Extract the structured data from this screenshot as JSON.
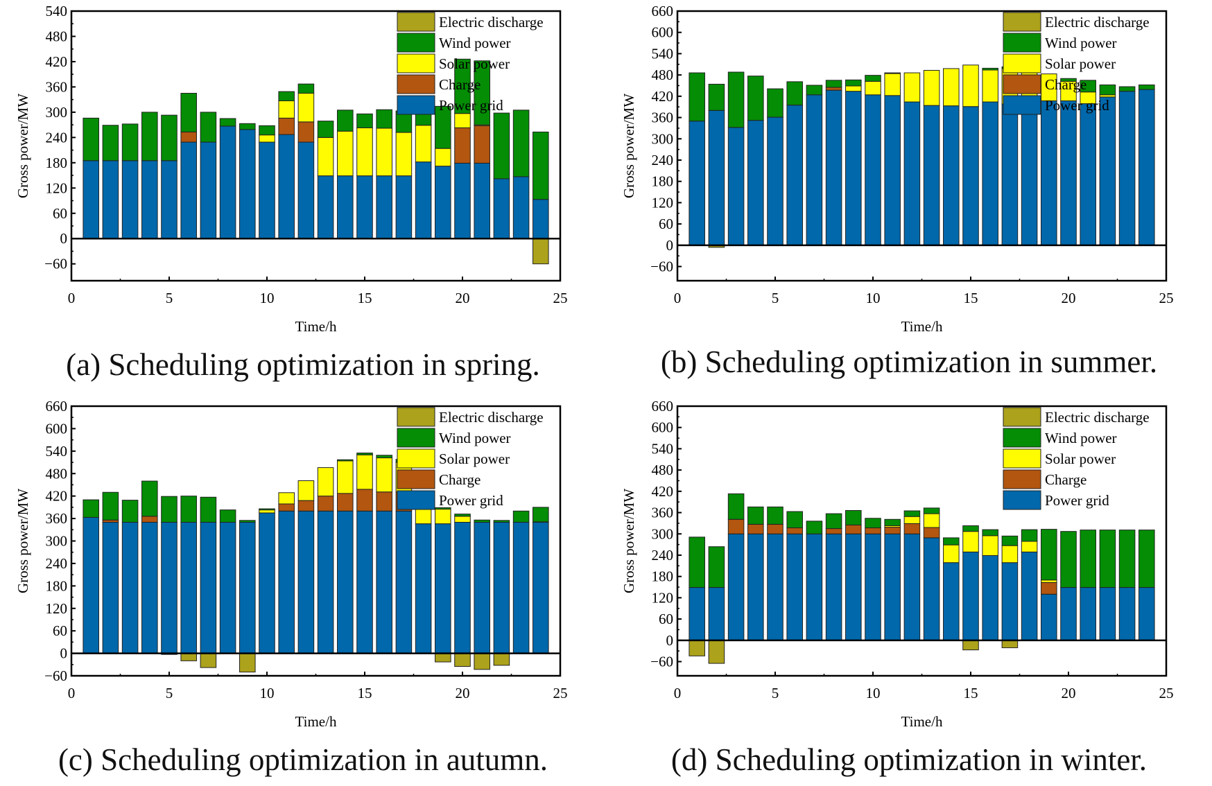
{
  "colors": {
    "Electric discharge": "#aca21b",
    "Wind power": "#048d05",
    "Solar power": "#fffb00",
    "Charge": "#b25610",
    "Power grid": "#0068ab"
  },
  "chart_data": [
    {
      "type": "bar",
      "stacked": true,
      "caption": "(a) Scheduling optimization in spring.",
      "xlabel": "Time/h",
      "ylabel": "Gross power/MW",
      "xlim": [
        0,
        25
      ],
      "ylim": [
        -100,
        540
      ],
      "xticks": [
        0,
        5,
        10,
        15,
        20,
        25
      ],
      "yticks": [
        -60,
        0,
        60,
        120,
        180,
        240,
        300,
        360,
        420,
        480,
        540
      ],
      "legend": "top-right",
      "x": [
        1,
        2,
        3,
        4,
        5,
        6,
        7,
        8,
        9,
        10,
        11,
        12,
        13,
        14,
        15,
        16,
        17,
        18,
        19,
        20,
        21,
        22,
        23,
        24
      ],
      "series": [
        {
          "name": "Power grid",
          "values": [
            185,
            185,
            185,
            185,
            185,
            229,
            229,
            267,
            259,
            229,
            247,
            229,
            149,
            149,
            149,
            149,
            149,
            182,
            172,
            179,
            179,
            142,
            147,
            93
          ]
        },
        {
          "name": "Charge",
          "values": [
            0,
            0,
            0,
            0,
            0,
            24,
            0,
            0,
            0,
            0,
            39,
            48,
            0,
            0,
            0,
            0,
            0,
            0,
            0,
            84,
            89,
            0,
            0,
            0
          ]
        },
        {
          "name": "Solar power",
          "values": [
            0,
            0,
            0,
            0,
            0,
            0,
            0,
            0,
            0,
            17,
            41,
            68,
            91,
            106,
            114,
            113,
            103,
            87,
            42,
            34,
            2,
            0,
            0,
            0
          ]
        },
        {
          "name": "Wind power",
          "values": [
            101,
            84,
            87,
            115,
            108,
            92,
            71,
            18,
            14,
            22,
            22,
            22,
            39,
            50,
            33,
            44,
            51,
            31,
            100,
            129,
            152,
            156,
            158,
            160
          ]
        },
        {
          "name": "Electric discharge",
          "values": [
            0,
            0,
            0,
            0,
            0,
            0,
            0,
            0,
            0,
            0,
            0,
            0,
            0,
            0,
            0,
            0,
            0,
            0,
            0,
            0,
            0,
            0,
            0,
            -60
          ]
        }
      ]
    },
    {
      "type": "bar",
      "stacked": true,
      "caption": "(b) Scheduling optimization in summer.",
      "xlabel": "Time/h",
      "ylabel": "Gross power/MW",
      "xlim": [
        0,
        25
      ],
      "ylim": [
        -100,
        660
      ],
      "xticks": [
        0,
        5,
        10,
        15,
        20,
        25
      ],
      "yticks": [
        -60,
        0,
        60,
        120,
        180,
        240,
        300,
        360,
        420,
        480,
        540,
        600,
        660
      ],
      "legend": "top-right",
      "x": [
        1,
        2,
        3,
        4,
        5,
        6,
        7,
        8,
        9,
        10,
        11,
        12,
        13,
        14,
        15,
        16,
        17,
        18,
        19,
        20,
        21,
        22,
        23,
        24
      ],
      "series": [
        {
          "name": "Power grid",
          "values": [
            350,
            380,
            332,
            352,
            361,
            395,
            424,
            437,
            434,
            424,
            422,
            404,
            394,
            393,
            391,
            404,
            398,
            400,
            407,
            407,
            399,
            418,
            434,
            439
          ]
        },
        {
          "name": "Charge",
          "values": [
            0,
            0,
            0,
            0,
            0,
            0,
            0,
            8,
            0,
            0,
            0,
            0,
            0,
            0,
            0,
            0,
            0,
            0,
            0,
            0,
            0,
            0,
            0,
            0
          ]
        },
        {
          "name": "Solar power",
          "values": [
            0,
            0,
            0,
            0,
            0,
            0,
            0,
            0,
            15,
            38,
            62,
            82,
            99,
            105,
            117,
            90,
            100,
            88,
            76,
            55,
            33,
            6,
            0,
            0
          ]
        },
        {
          "name": "Wind power",
          "values": [
            136,
            74,
            156,
            125,
            80,
            66,
            27,
            20,
            17,
            17,
            2,
            0,
            0,
            0,
            0,
            5,
            5,
            0,
            0,
            8,
            33,
            28,
            13,
            13
          ]
        },
        {
          "name": "Electric discharge",
          "values": [
            0,
            -6,
            0,
            0,
            0,
            0,
            0,
            0,
            0,
            0,
            0,
            0,
            0,
            0,
            0,
            0,
            0,
            0,
            0,
            0,
            0,
            0,
            0,
            0
          ]
        }
      ]
    },
    {
      "type": "bar",
      "stacked": true,
      "caption": "(c) Scheduling optimization in autumn.",
      "xlabel": "Time/h",
      "ylabel": "Gross power/MW",
      "xlim": [
        0,
        25
      ],
      "ylim": [
        -60,
        660
      ],
      "xticks": [
        0,
        5,
        10,
        15,
        20,
        25
      ],
      "yticks": [
        -60,
        0,
        60,
        120,
        180,
        240,
        300,
        360,
        420,
        480,
        540,
        600,
        660
      ],
      "legend": "top-right",
      "x": [
        1,
        2,
        3,
        4,
        5,
        6,
        7,
        8,
        9,
        10,
        11,
        12,
        13,
        14,
        15,
        16,
        17,
        18,
        19,
        20,
        21,
        22,
        23,
        24
      ],
      "series": [
        {
          "name": "Power grid",
          "values": [
            363,
            350,
            350,
            350,
            350,
            350,
            350,
            350,
            350,
            375,
            380,
            380,
            380,
            380,
            380,
            380,
            380,
            346,
            346,
            350,
            350,
            350,
            350,
            350
          ]
        },
        {
          "name": "Charge",
          "values": [
            0,
            6,
            0,
            16,
            0,
            0,
            0,
            0,
            0,
            0,
            19,
            28,
            40,
            47,
            58,
            51,
            51,
            0,
            0,
            0,
            0,
            0,
            0,
            1
          ]
        },
        {
          "name": "Solar power",
          "values": [
            0,
            0,
            0,
            0,
            0,
            0,
            0,
            0,
            0,
            8,
            30,
            53,
            76,
            87,
            92,
            91,
            79,
            40,
            39,
            16,
            0,
            0,
            0,
            0
          ]
        },
        {
          "name": "Wind power",
          "values": [
            47,
            74,
            59,
            94,
            69,
            70,
            67,
            33,
            5,
            3,
            0,
            0,
            0,
            3,
            5,
            7,
            8,
            0,
            4,
            6,
            6,
            5,
            30,
            39
          ]
        },
        {
          "name": "Electric discharge",
          "values": [
            0,
            0,
            0,
            0,
            -3,
            -20,
            -38,
            0,
            -50,
            0,
            0,
            0,
            0,
            0,
            0,
            0,
            0,
            0,
            -23,
            -35,
            -43,
            -32,
            0,
            0
          ]
        }
      ]
    },
    {
      "type": "bar",
      "stacked": true,
      "caption": "(d) Scheduling optimization in winter.",
      "xlabel": "Time/h",
      "ylabel": "Gross power/MW",
      "xlim": [
        0,
        25
      ],
      "ylim": [
        -100,
        660
      ],
      "xticks": [
        0,
        5,
        10,
        15,
        20,
        25
      ],
      "yticks": [
        -60,
        0,
        60,
        120,
        180,
        240,
        300,
        360,
        420,
        480,
        540,
        600,
        660
      ],
      "legend": "top-right",
      "x": [
        1,
        2,
        3,
        4,
        5,
        6,
        7,
        8,
        9,
        10,
        11,
        12,
        13,
        14,
        15,
        16,
        17,
        18,
        19,
        20,
        21,
        22,
        23,
        24
      ],
      "series": [
        {
          "name": "Power grid",
          "values": [
            149,
            149,
            300,
            300,
            300,
            300,
            300,
            300,
            300,
            300,
            300,
            300,
            289,
            219,
            249,
            239,
            219,
            249,
            130,
            149,
            149,
            149,
            149,
            149
          ]
        },
        {
          "name": "Charge",
          "values": [
            0,
            0,
            41,
            27,
            27,
            17,
            0,
            15,
            25,
            17,
            19,
            29,
            29,
            0,
            0,
            0,
            0,
            0,
            33,
            0,
            0,
            0,
            0,
            0
          ]
        },
        {
          "name": "Solar power",
          "values": [
            0,
            0,
            0,
            0,
            0,
            0,
            0,
            0,
            0,
            0,
            4,
            20,
            39,
            50,
            58,
            56,
            48,
            30,
            7,
            0,
            0,
            0,
            0,
            0
          ]
        },
        {
          "name": "Wind power",
          "values": [
            142,
            115,
            72,
            49,
            49,
            46,
            36,
            42,
            41,
            27,
            18,
            16,
            16,
            20,
            16,
            17,
            27,
            33,
            143,
            158,
            162,
            162,
            162,
            162
          ]
        },
        {
          "name": "Electric discharge",
          "values": [
            -44,
            -65,
            0,
            0,
            0,
            0,
            0,
            0,
            0,
            0,
            0,
            0,
            0,
            0,
            -27,
            0,
            -21,
            0,
            0,
            0,
            0,
            0,
            0,
            0
          ]
        }
      ]
    }
  ],
  "legend_order": [
    "Electric discharge",
    "Wind power",
    "Solar power",
    "Charge",
    "Power grid"
  ]
}
